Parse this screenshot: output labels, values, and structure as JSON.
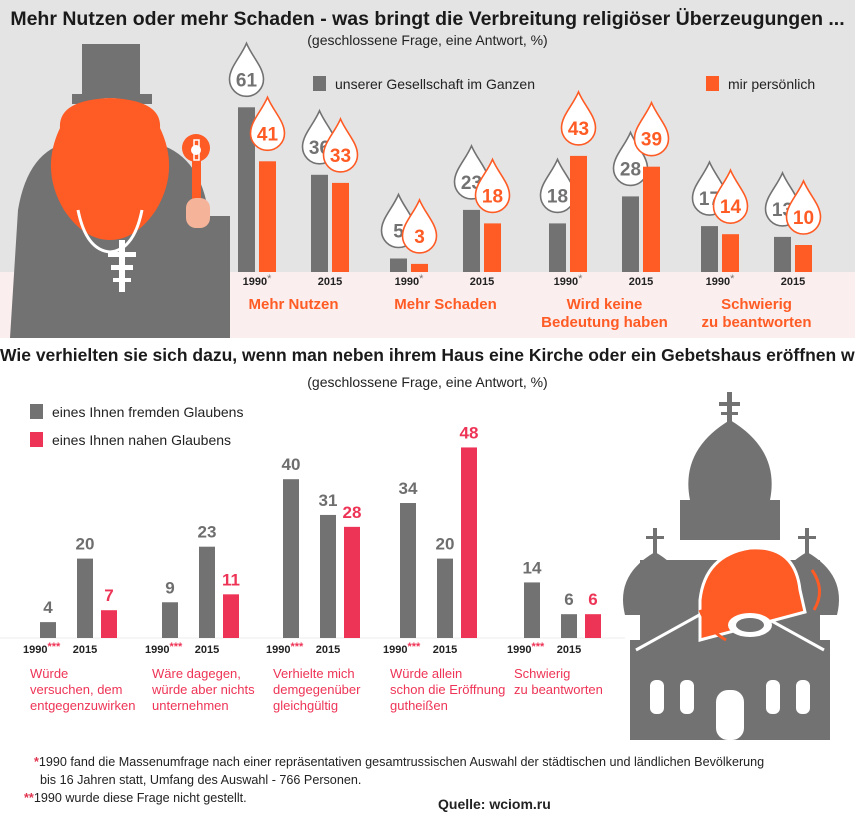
{
  "top": {
    "title": "Mehr Nutzen oder mehr Schaden - was bringt die Verbreitung religiöser Überzeugungen ...",
    "subtitle": "(geschlossene Frage, eine Antwort, %)",
    "legend_society": "unserer Gesellschaft im Ganzen",
    "legend_personal": "mir persönlich"
  },
  "bottom": {
    "title": "Wie verhielten sie sich dazu, wenn man neben ihrem Haus eine Kirche oder ein Gebetshaus eröffnen würde",
    "subtitle": "(geschlossene Frage, eine Antwort, %)",
    "legend_foreign": "eines Ihnen fremden Glaubens",
    "legend_near": "eines Ihnen nahen Glaubens"
  },
  "footnotes": {
    "star1_mark": "*",
    "star1_line1": "1990 fand die Massenumfrage nach einer repräsentativen gesamtrussischen Auswahl der städtischen und ländlichen Bevölkerung",
    "star1_line2": "bis 16 Jahren statt, Umfang des Auswahl - 766 Personen.",
    "star2_mark": "**",
    "star2_text": "1990 wurde diese Frage nicht gestellt.",
    "source": "Quelle: wciom.ru"
  },
  "colors": {
    "gray": "#727272",
    "orange": "#ff5b24",
    "pink": "#ee3456",
    "band": "#e4e4e4",
    "band_pink": "#fbeeee"
  },
  "chart_data": [
    {
      "type": "bar",
      "series_names": [
        "unserer Gesellschaft im Ganzen",
        "mir persönlich"
      ],
      "groups": [
        {
          "label": "Mehr Nutzen",
          "label_lines": [
            "Mehr Nutzen"
          ],
          "years": [
            {
              "year": "1990",
              "mark": "*",
              "values": [
                61,
                41
              ]
            },
            {
              "year": "2015",
              "mark": "",
              "values": [
                36,
                33
              ]
            }
          ]
        },
        {
          "label": "Mehr Schaden",
          "label_lines": [
            "Mehr Schaden"
          ],
          "years": [
            {
              "year": "1990",
              "mark": "*",
              "values": [
                5,
                3
              ]
            },
            {
              "year": "2015",
              "mark": "",
              "values": [
                23,
                18
              ]
            }
          ]
        },
        {
          "label": "Wird keine Bedeutung haben",
          "label_lines": [
            "Wird keine",
            "Bedeutung haben"
          ],
          "years": [
            {
              "year": "1990",
              "mark": "*",
              "values": [
                18,
                43
              ]
            },
            {
              "year": "2015",
              "mark": "",
              "values": [
                28,
                39
              ]
            }
          ]
        },
        {
          "label": "Schwierig zu beantworten",
          "label_lines": [
            "Schwierig",
            "zu beantworten"
          ],
          "years": [
            {
              "year": "1990",
              "mark": "*",
              "values": [
                17,
                14
              ]
            },
            {
              "year": "2015",
              "mark": "",
              "values": [
                13,
                10
              ]
            }
          ]
        }
      ]
    },
    {
      "type": "bar",
      "series_names": [
        "eines Ihnen fremden Glaubens",
        "eines Ihnen nahen Glaubens"
      ],
      "groups": [
        {
          "label": "Würde versuchen, dem entgegenzuwirken",
          "label_lines": [
            "Würde",
            "versuchen, dem",
            "entgegenzuwirken"
          ],
          "y1990": {
            "year": "1990",
            "mark": "***",
            "value": 4
          },
          "y2015": {
            "year": "2015",
            "values": [
              20,
              7
            ]
          }
        },
        {
          "label": "Wäre dagegen, würde aber nichts unternehmen",
          "label_lines": [
            "Wäre dagegen,",
            "würde aber nichts",
            "unternehmen"
          ],
          "y1990": {
            "year": "1990",
            "mark": "***",
            "value": 9
          },
          "y2015": {
            "year": "2015",
            "values": [
              23,
              11
            ]
          }
        },
        {
          "label": "Verhielte mich demgegenüber gleichgültig",
          "label_lines": [
            "Verhielte mich",
            "demgegenüber",
            "gleichgültig"
          ],
          "y1990": {
            "year": "1990",
            "mark": "***",
            "value": 40
          },
          "y2015": {
            "year": "2015",
            "values": [
              31,
              28
            ]
          }
        },
        {
          "label": "Würde allein schon die Eröffnung gutheißen",
          "label_lines": [
            "Würde allein",
            "schon die Eröffnung",
            "gutheißen"
          ],
          "y1990": {
            "year": "1990",
            "mark": "***",
            "value": 34
          },
          "y2015": {
            "year": "2015",
            "values": [
              20,
              48
            ]
          }
        },
        {
          "label": "Schwierig zu beantworten",
          "label_lines": [
            "Schwierig",
            "zu beantworten"
          ],
          "y1990": {
            "year": "1990",
            "mark": "***",
            "value": 14
          },
          "y2015": {
            "year": "2015",
            "values": [
              6,
              6
            ]
          }
        }
      ]
    }
  ]
}
